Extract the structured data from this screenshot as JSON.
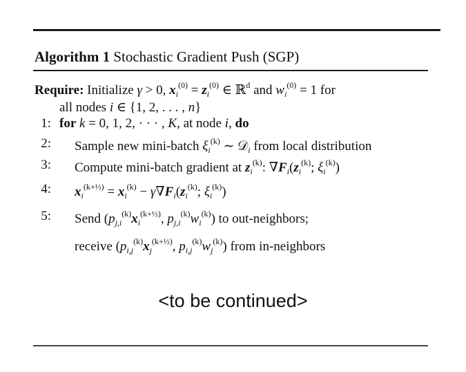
{
  "algorithm": {
    "label": "Algorithm 1",
    "title": "Stochastic Gradient Push (SGP)"
  },
  "require": {
    "keyword": "Require:",
    "text": "Initialize",
    "text_and": "and",
    "text_for": "for",
    "line2": "all nodes"
  },
  "steps": [
    {
      "num": "1:",
      "for_kw": "for",
      "text": ", at node",
      "do_kw": "do"
    },
    {
      "num": "2:",
      "text": "Sample new mini-batch",
      "tail": "from local distribution"
    },
    {
      "num": "3:",
      "text": "Compute mini-batch gradient at"
    },
    {
      "num": "4:"
    },
    {
      "num": "5:",
      "text": "Send",
      "tail": "to out-neighbors;"
    },
    {
      "text": "receive",
      "tail": "from in-neighbors"
    }
  ],
  "footer": {
    "continued": "<to be continued>"
  }
}
